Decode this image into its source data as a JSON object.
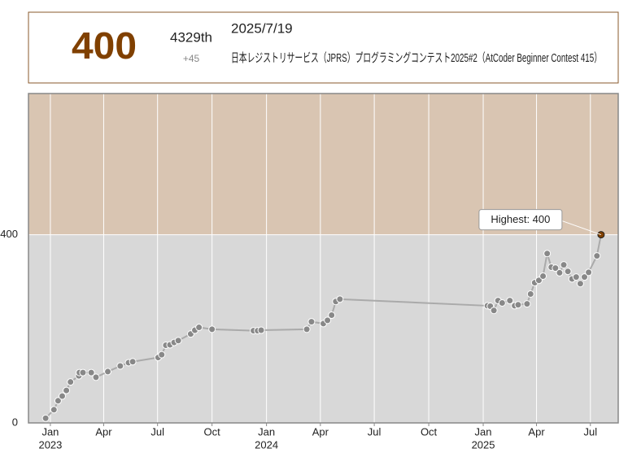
{
  "header": {
    "rating": "400",
    "rank": "4329th",
    "delta": "+45",
    "date": "2025/7/19",
    "contest": "日本レジストリサービス（JPRS）プログラミングコンテスト2025#2（AtCoder Beginner Contest 415）"
  },
  "chart_data": {
    "type": "line",
    "x": [
      "2022-12-24",
      "2023-01-07",
      "2023-01-14",
      "2023-01-21",
      "2023-01-28",
      "2023-02-04",
      "2023-02-18",
      "2023-02-19",
      "2023-02-25",
      "2023-03-11",
      "2023-03-19",
      "2023-04-08",
      "2023-04-29",
      "2023-05-13",
      "2023-05-20",
      "2023-07-02",
      "2023-07-08",
      "2023-07-15",
      "2023-07-22",
      "2023-07-29",
      "2023-08-05",
      "2023-08-26",
      "2023-09-02",
      "2023-09-09",
      "2023-10-01",
      "2023-12-10",
      "2023-12-17",
      "2023-12-23",
      "2024-03-09",
      "2024-03-17",
      "2024-04-06",
      "2024-04-13",
      "2024-04-20",
      "2024-04-27",
      "2024-05-04",
      "2025-01-08",
      "2025-01-13",
      "2025-01-19",
      "2025-01-26",
      "2025-02-02",
      "2025-02-15",
      "2025-02-23",
      "2025-03-01",
      "2025-03-16",
      "2025-03-22",
      "2025-03-29",
      "2025-04-05",
      "2025-04-12",
      "2025-04-19",
      "2025-04-26",
      "2025-05-03",
      "2025-05-10",
      "2025-05-17",
      "2025-05-24",
      "2025-05-31",
      "2025-06-07",
      "2025-06-14",
      "2025-06-21",
      "2025-06-28",
      "2025-07-12",
      "2025-07-19"
    ],
    "series": [
      {
        "name": "rating",
        "color": "#888888",
        "line_color": "#aaaaaa",
        "values": [
          10,
          28,
          47,
          57,
          69,
          87,
          100,
          107,
          107,
          107,
          97,
          109,
          121,
          128,
          130,
          139,
          145,
          165,
          166,
          171,
          175,
          189,
          197,
          203,
          199,
          196,
          196,
          197,
          199,
          215,
          211,
          218,
          229,
          258,
          263,
          249,
          248,
          239,
          260,
          255,
          260,
          249,
          251,
          253,
          274,
          298,
          303,
          312,
          360,
          331,
          329,
          319,
          336,
          322,
          306,
          310,
          296,
          310,
          320,
          355,
          400
        ]
      }
    ],
    "xlim": [
      "2022-11-25",
      "2025-08-17"
    ],
    "xticks": [
      {
        "value": "2023-01-01",
        "label": "Jan",
        "year": "2023"
      },
      {
        "value": "2023-04-01",
        "label": "Apr"
      },
      {
        "value": "2023-07-01",
        "label": "Jul"
      },
      {
        "value": "2023-10-01",
        "label": "Oct"
      },
      {
        "value": "2024-01-01",
        "label": "Jan",
        "year": "2024"
      },
      {
        "value": "2024-04-01",
        "label": "Apr"
      },
      {
        "value": "2024-07-01",
        "label": "Jul"
      },
      {
        "value": "2024-10-01",
        "label": "Oct"
      },
      {
        "value": "2025-01-01",
        "label": "Jan",
        "year": "2025"
      },
      {
        "value": "2025-04-01",
        "label": "Apr"
      },
      {
        "value": "2025-07-01",
        "label": "Jul"
      }
    ],
    "ylim": [
      0,
      700
    ],
    "yticks": [
      0,
      400
    ],
    "grid": true,
    "bands": [
      {
        "from": 0,
        "to": 400,
        "color": "#d8d8d8"
      },
      {
        "from": 400,
        "to": 700,
        "color": "#d9c5b2"
      }
    ],
    "annotation": {
      "text": "Highest: 400",
      "x": "2025-07-19",
      "y": 400,
      "color": "#804000"
    }
  }
}
